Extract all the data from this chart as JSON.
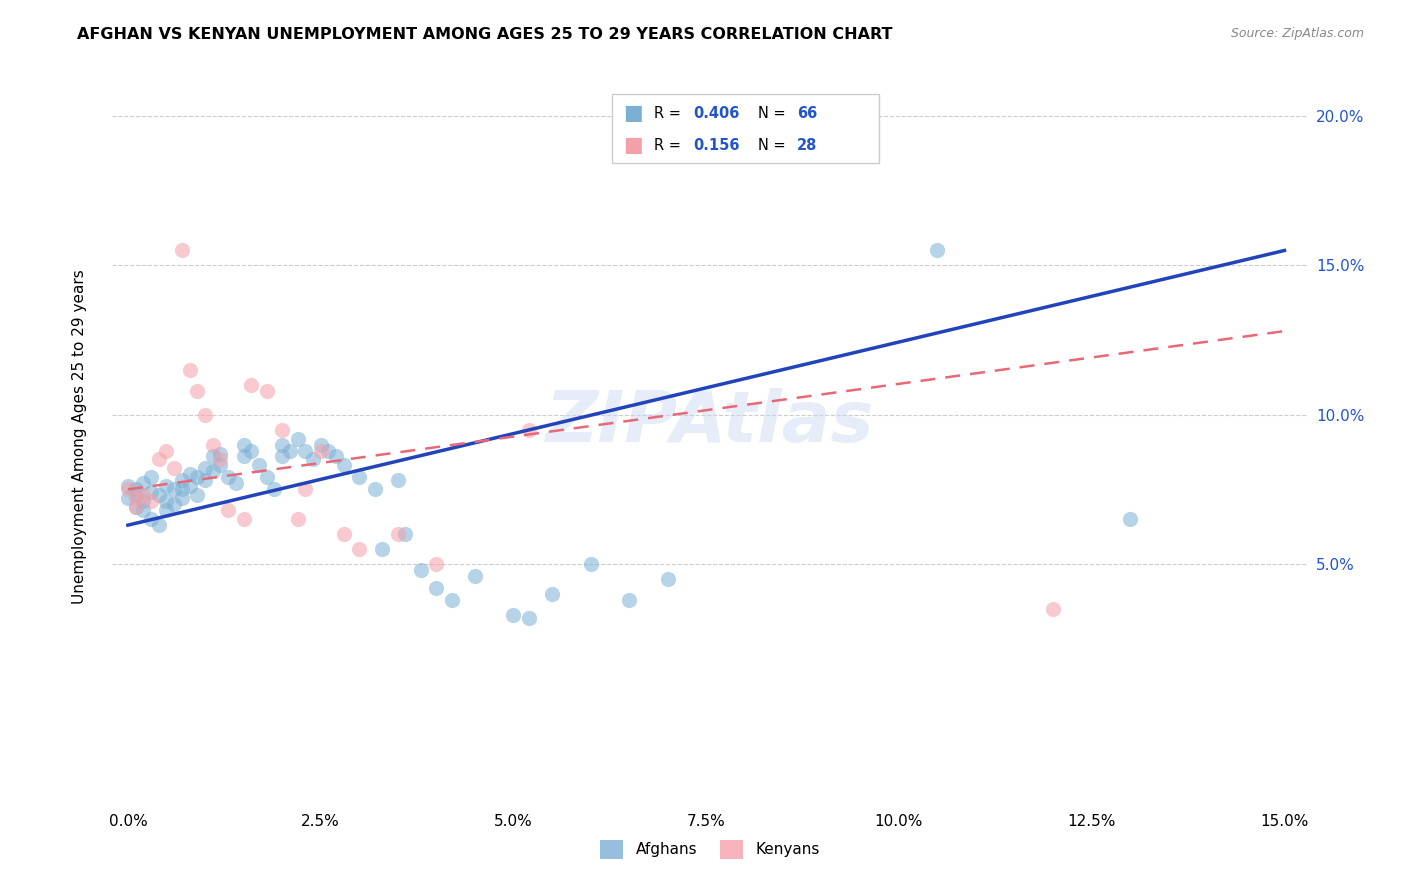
{
  "title": "AFGHAN VS KENYAN UNEMPLOYMENT AMONG AGES 25 TO 29 YEARS CORRELATION CHART",
  "source": "Source: ZipAtlas.com",
  "ylabel": "Unemployment Among Ages 25 to 29 years",
  "watermark": "ZIPAtlas",
  "afghan_R": "0.406",
  "afghan_N": "66",
  "kenyan_R": "0.156",
  "kenyan_N": "28",
  "afghan_color": "#7BAFD4",
  "kenyan_color": "#F4A0A8",
  "afghan_line_color": "#2244BB",
  "kenyan_line_color": "#E86878",
  "xlim": [
    -0.002,
    0.153
  ],
  "ylim": [
    -0.03,
    0.215
  ],
  "xticks": [
    0.0,
    0.025,
    0.05,
    0.075,
    0.1,
    0.125,
    0.15
  ],
  "xtick_labels": [
    "0.0%",
    "2.5%",
    "5.0%",
    "7.5%",
    "10.0%",
    "12.5%",
    "15.0%"
  ],
  "yticks": [
    0.0,
    0.05,
    0.1,
    0.15,
    0.2
  ],
  "ytick_labels_right": [
    "",
    "5.0%",
    "10.0%",
    "15.0%",
    "20.0%"
  ],
  "grid_yticks": [
    0.05,
    0.1,
    0.15,
    0.2
  ],
  "afghan_line_x0": 0.0,
  "afghan_line_y0": 0.063,
  "afghan_line_x1": 0.15,
  "afghan_line_y1": 0.155,
  "kenyan_line_x0": 0.0,
  "kenyan_line_y0": 0.075,
  "kenyan_line_x1": 0.15,
  "kenyan_line_y1": 0.128,
  "afghan_x": [
    0.0,
    0.0,
    0.001,
    0.001,
    0.001,
    0.002,
    0.002,
    0.002,
    0.003,
    0.003,
    0.003,
    0.004,
    0.004,
    0.005,
    0.005,
    0.005,
    0.006,
    0.006,
    0.007,
    0.007,
    0.007,
    0.008,
    0.008,
    0.009,
    0.009,
    0.01,
    0.01,
    0.011,
    0.011,
    0.012,
    0.012,
    0.013,
    0.014,
    0.015,
    0.015,
    0.016,
    0.017,
    0.018,
    0.019,
    0.02,
    0.02,
    0.021,
    0.022,
    0.023,
    0.024,
    0.025,
    0.026,
    0.027,
    0.028,
    0.03,
    0.032,
    0.033,
    0.035,
    0.036,
    0.038,
    0.04,
    0.042,
    0.045,
    0.05,
    0.052,
    0.055,
    0.06,
    0.065,
    0.07,
    0.105,
    0.13
  ],
  "afghan_y": [
    0.076,
    0.072,
    0.075,
    0.073,
    0.069,
    0.077,
    0.071,
    0.068,
    0.079,
    0.074,
    0.065,
    0.073,
    0.063,
    0.076,
    0.071,
    0.068,
    0.075,
    0.07,
    0.078,
    0.075,
    0.072,
    0.08,
    0.076,
    0.079,
    0.073,
    0.082,
    0.078,
    0.086,
    0.081,
    0.087,
    0.083,
    0.079,
    0.077,
    0.09,
    0.086,
    0.088,
    0.083,
    0.079,
    0.075,
    0.09,
    0.086,
    0.088,
    0.092,
    0.088,
    0.085,
    0.09,
    0.088,
    0.086,
    0.083,
    0.079,
    0.075,
    0.055,
    0.078,
    0.06,
    0.048,
    0.042,
    0.038,
    0.046,
    0.033,
    0.032,
    0.04,
    0.05,
    0.038,
    0.045,
    0.155,
    0.065
  ],
  "kenyan_x": [
    0.0,
    0.001,
    0.001,
    0.002,
    0.003,
    0.004,
    0.005,
    0.006,
    0.007,
    0.008,
    0.009,
    0.01,
    0.011,
    0.012,
    0.013,
    0.015,
    0.016,
    0.018,
    0.02,
    0.022,
    0.023,
    0.025,
    0.028,
    0.03,
    0.035,
    0.04,
    0.052,
    0.12
  ],
  "kenyan_y": [
    0.075,
    0.072,
    0.069,
    0.073,
    0.071,
    0.085,
    0.088,
    0.082,
    0.155,
    0.115,
    0.108,
    0.1,
    0.09,
    0.085,
    0.068,
    0.065,
    0.11,
    0.108,
    0.095,
    0.065,
    0.075,
    0.088,
    0.06,
    0.055,
    0.06,
    0.05,
    0.095,
    0.035
  ],
  "scatter_size": 120,
  "scatter_alpha": 0.55
}
